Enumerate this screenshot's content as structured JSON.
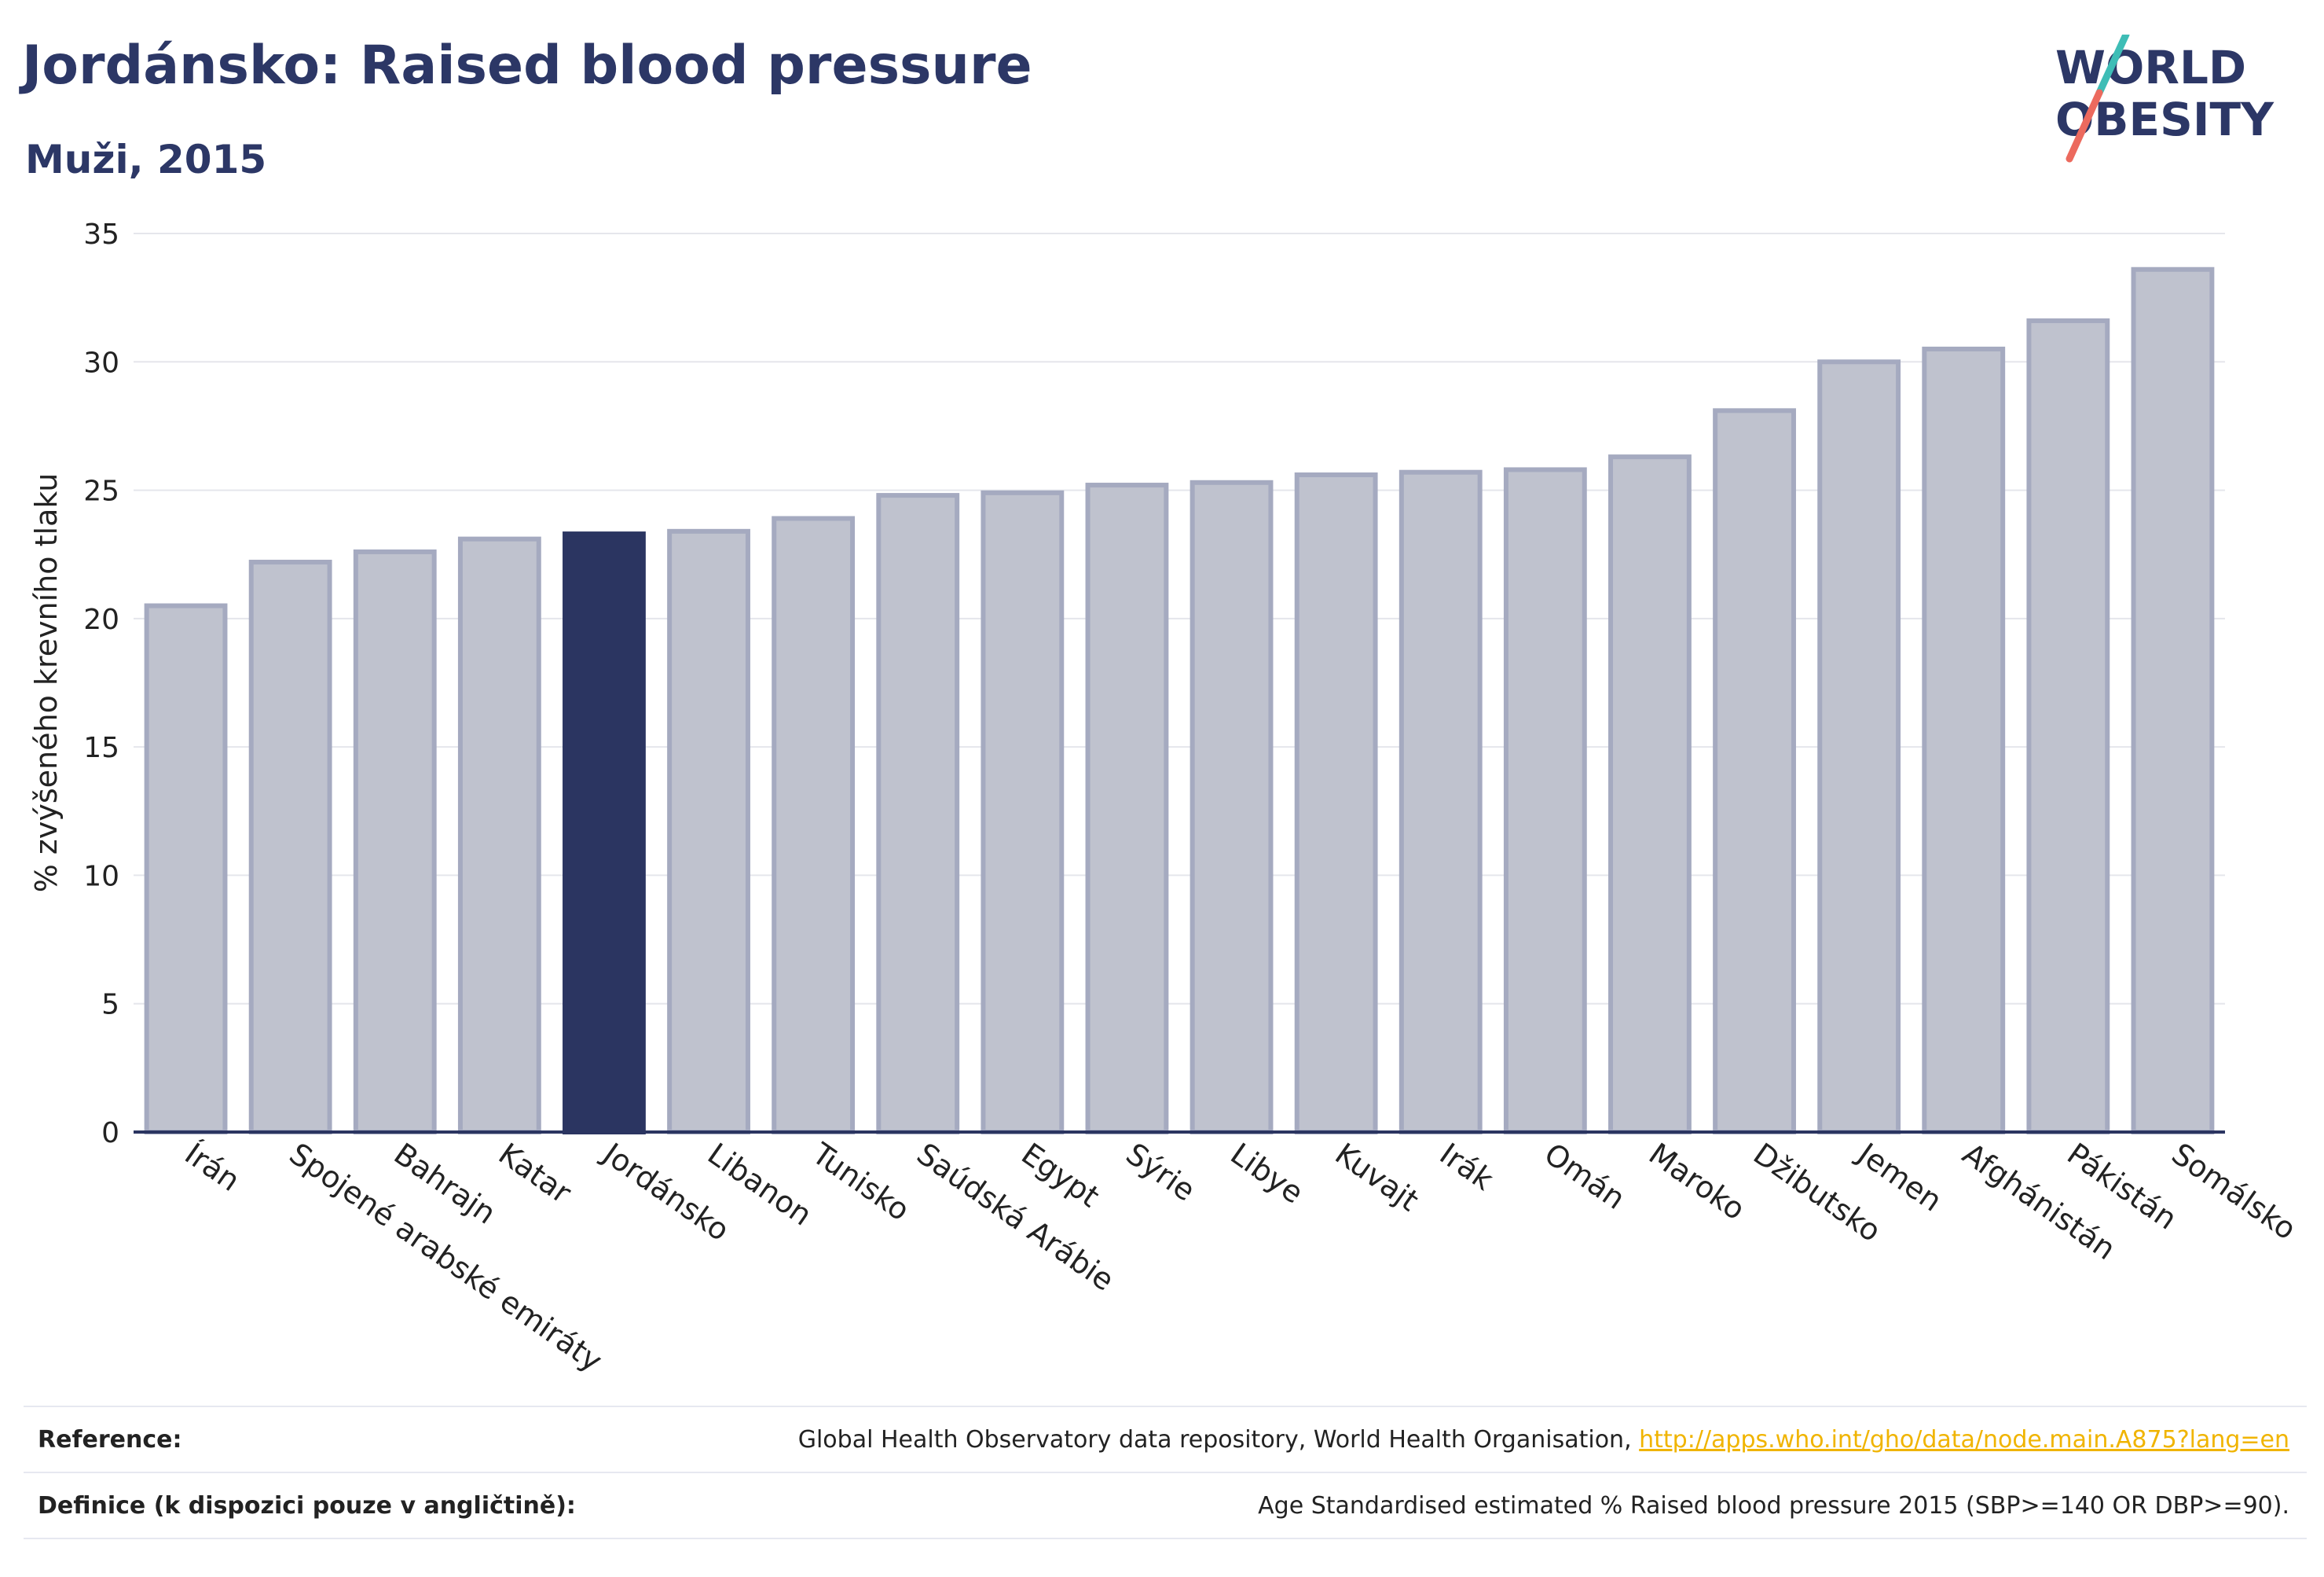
{
  "title": "Jordánsko: Raised blood pressure",
  "subtitle": "Muži, 2015",
  "logo": {
    "line1": "WORLD",
    "line2": "OBESITY"
  },
  "colors": {
    "highlight": "#2b3561",
    "bar_fill": "#bfc2ce",
    "bar_stroke": "#a5aac0",
    "grid": "#e5e6ec",
    "title": "#2c3766",
    "link": "#f0b400",
    "logo_teal": "#3ebdb6",
    "logo_coral": "#ec6a5e"
  },
  "chart_data": {
    "type": "bar",
    "ylabel": "% zvýšeného krevního tlaku",
    "ylim": [
      0,
      35
    ],
    "yticks": [
      0,
      5,
      10,
      15,
      20,
      25,
      30,
      35
    ],
    "grid": true,
    "highlight": "Jordánsko",
    "categories": [
      "Írán",
      "Spojené arabské emiráty",
      "Bahrajn",
      "Katar",
      "Jordánsko",
      "Libanon",
      "Tunisko",
      "Saúdská Arábie",
      "Egypt",
      "Sýrie",
      "Libye",
      "Kuvajt",
      "Irák",
      "Omán",
      "Maroko",
      "Džibutsko",
      "Jemen",
      "Afghánistán",
      "Pákistán",
      "Somálsko"
    ],
    "values": [
      20.5,
      22.2,
      22.6,
      23.1,
      23.3,
      23.4,
      23.9,
      24.8,
      24.9,
      25.2,
      25.3,
      25.6,
      25.7,
      25.8,
      26.3,
      28.1,
      30.0,
      30.5,
      31.6,
      33.6
    ]
  },
  "footer": {
    "reference_label": "Reference:",
    "reference_text": "Global Health Observatory data repository, World Health Organisation, ",
    "reference_link": "http://apps.who.int/gho/data/node.main.A875?lang=en",
    "definition_label": "Definice (k dispozici pouze v angličtině):",
    "definition_text": "Age Standardised estimated % Raised blood pressure 2015 (SBP>=140 OR DBP>=90)."
  }
}
